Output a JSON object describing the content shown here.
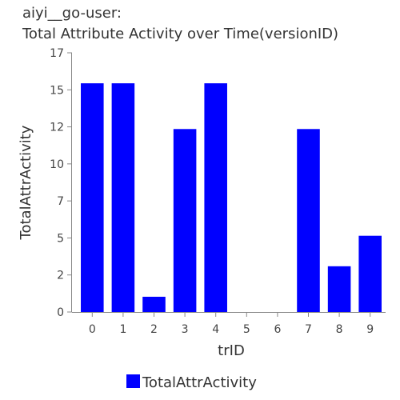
{
  "chart_data": {
    "type": "bar",
    "title": [
      "aiyi__go-user:",
      "Total Attribute Activity over Time(versionID)"
    ],
    "xlabel": "trID",
    "ylabel": "TotalAttrActivity",
    "categories": [
      "0",
      "1",
      "2",
      "3",
      "4",
      "5",
      "6",
      "7",
      "8",
      "9"
    ],
    "series": [
      {
        "name": "TotalAttrActivity",
        "values": [
          15,
          15,
          1,
          12,
          15,
          0,
          0,
          12,
          3,
          5
        ],
        "color": "#0000ff"
      }
    ],
    "ylim": [
      0,
      17
    ],
    "yticks": [
      "0",
      "2",
      "5",
      "7",
      "10",
      "12",
      "15",
      "17"
    ],
    "grid": false,
    "legend": "bottom"
  }
}
